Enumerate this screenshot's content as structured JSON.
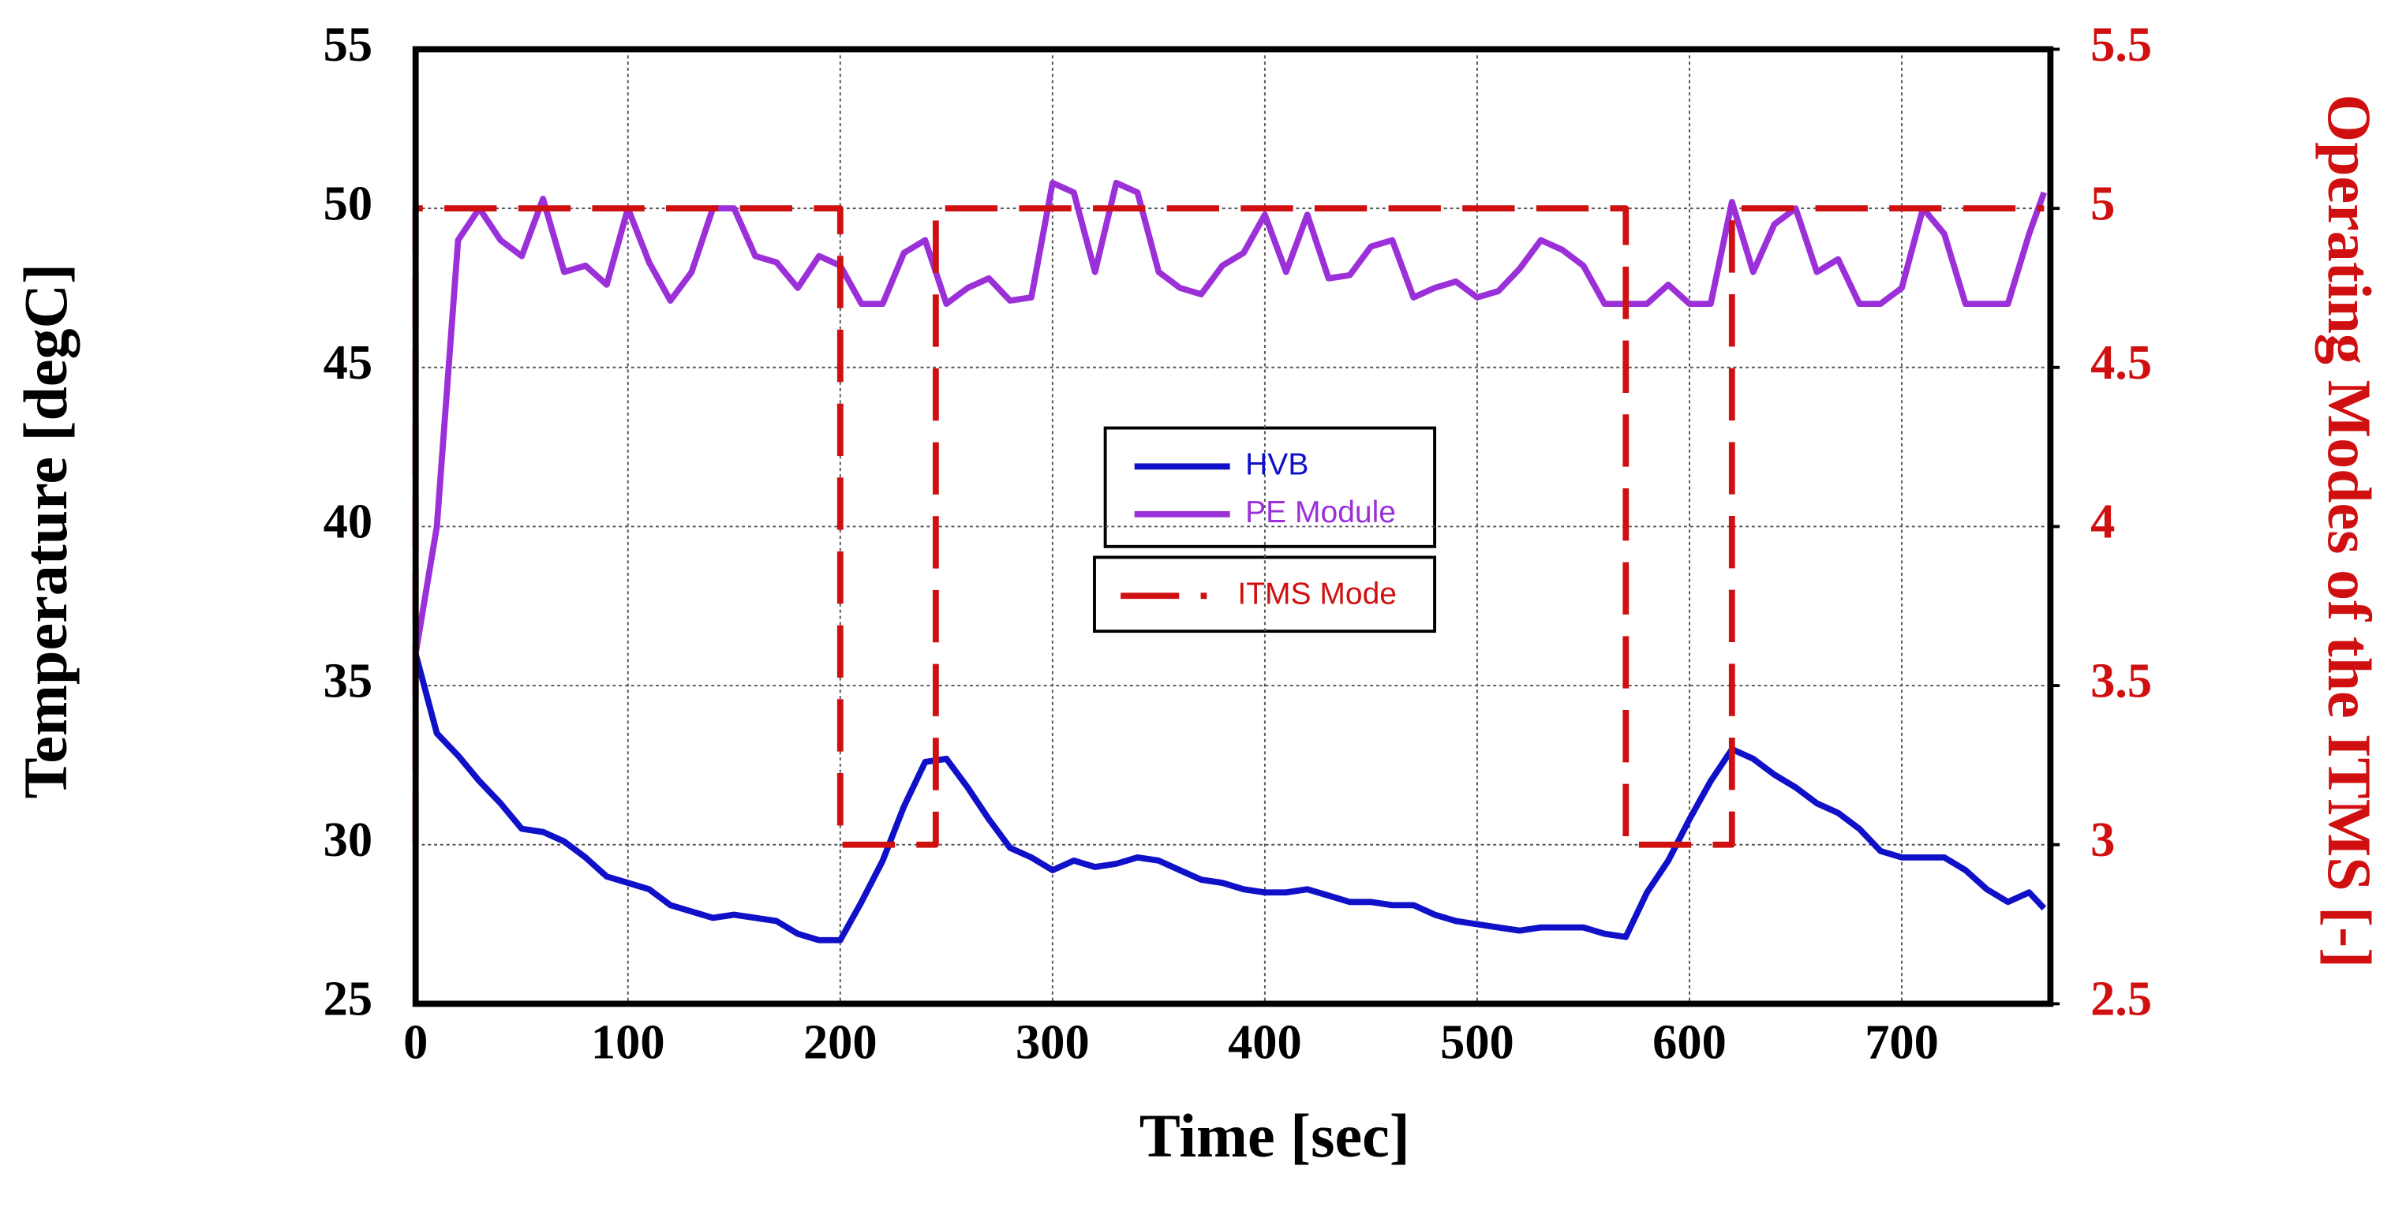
{
  "chart_data": {
    "type": "line",
    "xlabel": "Time [sec]",
    "ylabel": "Temperature [degC]",
    "y2label": "Operating Modes of the ITMS [-]",
    "x": [
      0,
      10,
      20,
      30,
      40,
      50,
      60,
      70,
      80,
      90,
      100,
      110,
      120,
      130,
      140,
      150,
      160,
      170,
      180,
      190,
      200,
      210,
      220,
      230,
      240,
      250,
      260,
      270,
      280,
      290,
      300,
      310,
      320,
      330,
      340,
      350,
      360,
      370,
      380,
      390,
      400,
      410,
      420,
      430,
      440,
      450,
      460,
      470,
      480,
      490,
      500,
      510,
      520,
      530,
      540,
      550,
      560,
      570,
      580,
      590,
      600,
      610,
      620,
      630,
      640,
      650,
      660,
      670,
      680,
      690,
      700,
      710,
      720,
      730,
      740,
      750,
      760,
      767
    ],
    "series": [
      {
        "name": "HVB",
        "color": "#1010c8",
        "values": [
          36,
          33.5,
          32.8,
          32,
          31.3,
          30.5,
          30.4,
          30.1,
          29.6,
          29,
          28.8,
          28.6,
          28.1,
          27.9,
          27.7,
          27.8,
          27.7,
          27.6,
          27.2,
          27,
          27,
          28.2,
          29.5,
          31.2,
          32.6,
          32.7,
          31.8,
          30.8,
          29.9,
          29.6,
          29.2,
          29.5,
          29.3,
          29.4,
          29.6,
          29.5,
          29.2,
          28.9,
          28.8,
          28.6,
          28.5,
          28.5,
          28.6,
          28.4,
          28.2,
          28.2,
          28.1,
          28.1,
          27.8,
          27.6,
          27.5,
          27.4,
          27.3,
          27.4,
          27.4,
          27.4,
          27.2,
          27.1,
          28.5,
          29.5,
          30.8,
          32,
          33,
          32.7,
          32.2,
          31.8,
          31.3,
          31,
          30.5,
          29.8,
          29.6,
          29.6,
          29.6,
          29.2,
          28.6,
          28.2,
          28.5,
          28
        ]
      },
      {
        "name": "PE Module",
        "color": "#9b30d9",
        "values": [
          36,
          40,
          49,
          50,
          49,
          48.5,
          50.3,
          48,
          48.2,
          47.6,
          50,
          48.3,
          47.1,
          48,
          50,
          50,
          48.5,
          48.3,
          47.5,
          48.5,
          48.2,
          47,
          47,
          48.6,
          49,
          47,
          47.5,
          47.8,
          47.1,
          47.2,
          50.8,
          50.5,
          48,
          50.8,
          50.5,
          48,
          47.5,
          47.3,
          48.2,
          48.6,
          49.8,
          48,
          49.8,
          47.8,
          47.9,
          48.8,
          49,
          47.2,
          47.5,
          47.7,
          47.2,
          47.4,
          48.1,
          49,
          48.7,
          48.2,
          47,
          47,
          47,
          47.6,
          47,
          47,
          50.2,
          48,
          49.5,
          50,
          48,
          48.4,
          47,
          47,
          47.5,
          50,
          49.2,
          47,
          47,
          47,
          49.2,
          50.5
        ]
      },
      {
        "name": "ITMS Mode",
        "color": "#d01010",
        "axis": "y2",
        "dashed": true,
        "x": [
          0,
          0,
          200,
          200,
          245,
          245,
          570,
          570,
          620,
          620,
          767
        ],
        "values": [
          3,
          5,
          5,
          3,
          3,
          5,
          5,
          3,
          3,
          5,
          5
        ]
      }
    ],
    "xlim": [
      0,
      770
    ],
    "xticks": [
      0,
      100,
      200,
      300,
      400,
      500,
      600,
      700
    ],
    "ylim": [
      25,
      55
    ],
    "yticks": [
      25,
      30,
      35,
      40,
      45,
      50,
      55
    ],
    "y2lim": [
      2.5,
      5.5
    ],
    "y2ticks": [
      2.5,
      3,
      3.5,
      4,
      4.5,
      5,
      5.5
    ],
    "grid": true
  }
}
